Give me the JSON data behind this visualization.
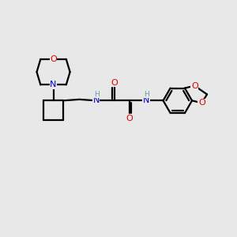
{
  "background_color": "#e8e8e8",
  "bond_color": "#000000",
  "atom_colors": {
    "O": "#dd0000",
    "N": "#0000cc",
    "H": "#6699aa",
    "C": "#000000"
  },
  "figsize": [
    3.0,
    3.0
  ],
  "dpi": 100
}
